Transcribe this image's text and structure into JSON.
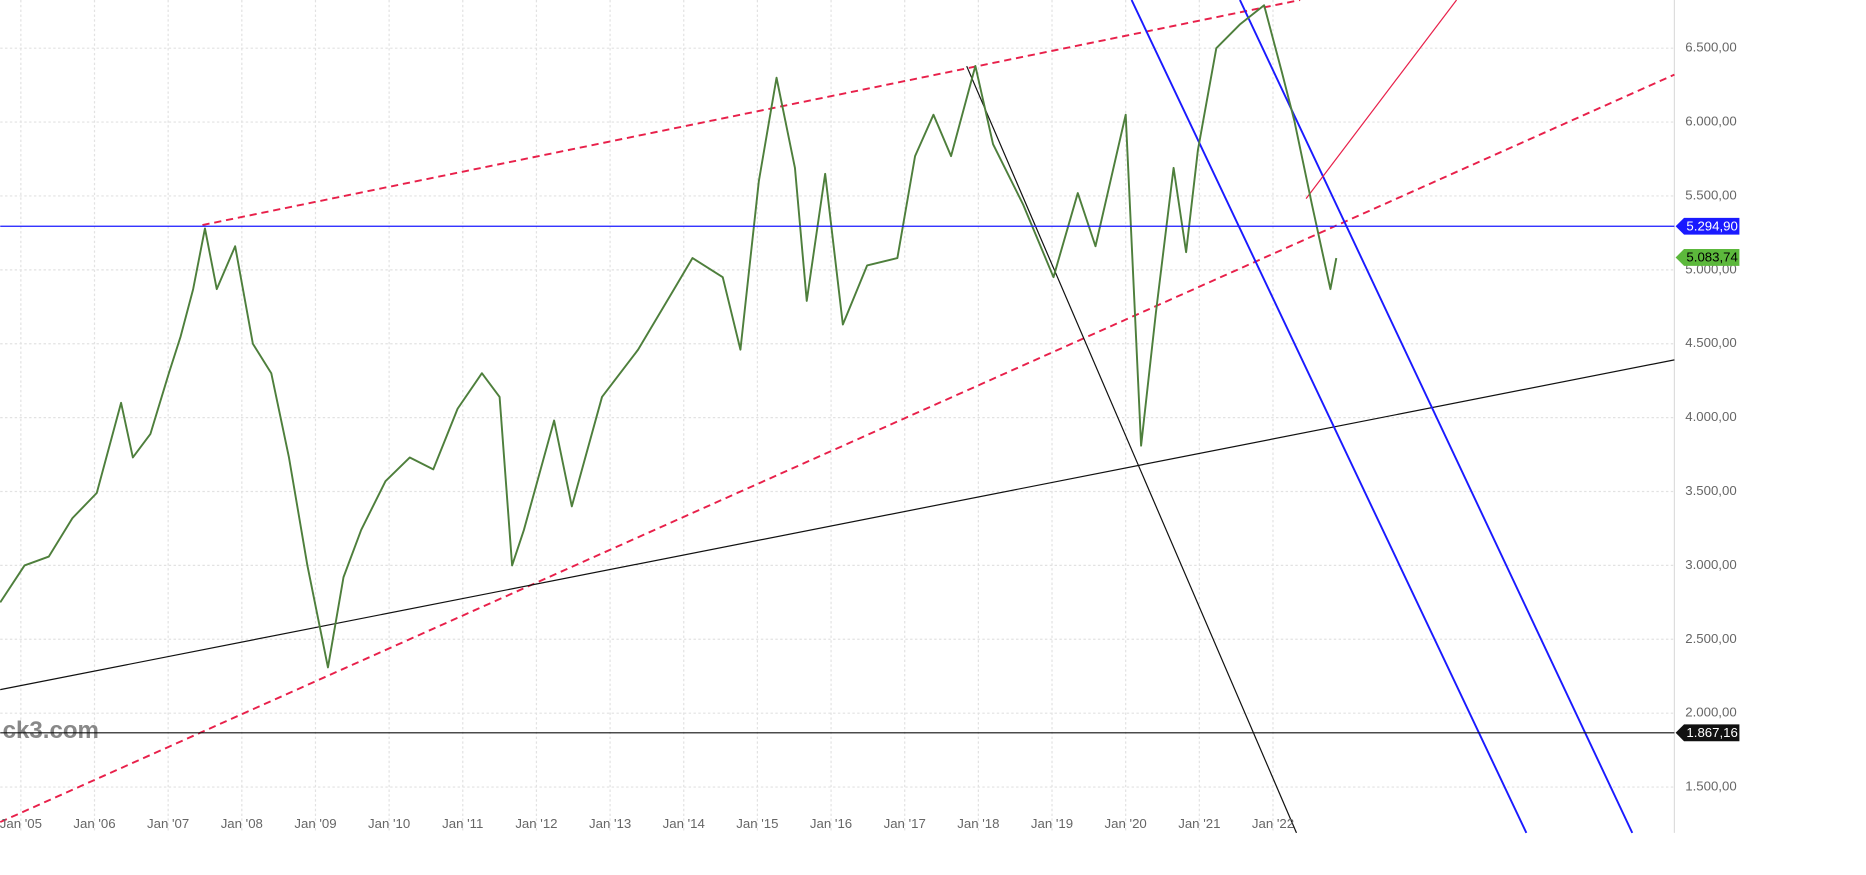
{
  "chart_data": {
    "type": "line",
    "color": "#4e7f3c",
    "grid": true,
    "x": [
      2004.72,
      2005.05,
      2005.38,
      2005.7,
      2006.03,
      2006.36,
      2006.52,
      2006.76,
      2007.01,
      2007.17,
      2007.34,
      2007.5,
      2007.66,
      2007.91,
      2008.15,
      2008.4,
      2008.64,
      2008.89,
      2009.17,
      2009.38,
      2009.62,
      2009.95,
      2010.28,
      2010.6,
      2010.93,
      2011.26,
      2011.5,
      2011.67,
      2011.83,
      2012.24,
      2012.48,
      2012.89,
      2013.38,
      2013.87,
      2014.12,
      2014.53,
      2014.77,
      2015.02,
      2015.26,
      2015.51,
      2015.67,
      2015.92,
      2016.16,
      2016.49,
      2016.9,
      2017.14,
      2017.39,
      2017.63,
      2017.96,
      2018.2,
      2018.61,
      2019.02,
      2019.35,
      2019.59,
      2020.0,
      2020.21,
      2020.41,
      2020.65,
      2020.82,
      2020.98,
      2021.23,
      2021.55,
      2021.88,
      2022.12,
      2022.29,
      2022.53,
      2022.78,
      2022.86
    ],
    "values": [
      2750,
      3000,
      3060,
      3320,
      3490,
      4100,
      3730,
      3890,
      4300,
      4550,
      4870,
      5280,
      4870,
      5160,
      4500,
      4300,
      3730,
      3000,
      2310,
      2920,
      3240,
      3570,
      3730,
      3650,
      4060,
      4300,
      4140,
      3000,
      3240,
      3980,
      3400,
      4140,
      4460,
      4870,
      5080,
      4950,
      4460,
      5600,
      6300,
      5690,
      4790,
      5650,
      4630,
      5030,
      5080,
      5770,
      6050,
      5770,
      6380,
      5850,
      5440,
      4950,
      5520,
      5160,
      6050,
      3810,
      4710,
      5690,
      5120,
      5810,
      6500,
      6660,
      6790,
      6340,
      6010,
      5440,
      4870,
      5080
    ],
    "xlim": [
      2004.72,
      2027.45
    ],
    "ylim": [
      1190,
      6826
    ],
    "xticks": [
      {
        "value": 2005,
        "label": "Jan '05"
      },
      {
        "value": 2006,
        "label": "Jan '06"
      },
      {
        "value": 2007,
        "label": "Jan '07"
      },
      {
        "value": 2008,
        "label": "Jan '08"
      },
      {
        "value": 2009,
        "label": "Jan '09"
      },
      {
        "value": 2010,
        "label": "Jan '10"
      },
      {
        "value": 2011,
        "label": "Jan '11"
      },
      {
        "value": 2012,
        "label": "Jan '12"
      },
      {
        "value": 2013,
        "label": "Jan '13"
      },
      {
        "value": 2014,
        "label": "Jan '14"
      },
      {
        "value": 2015,
        "label": "Jan '15"
      },
      {
        "value": 2016,
        "label": "Jan '16"
      },
      {
        "value": 2017,
        "label": "Jan '17"
      },
      {
        "value": 2018,
        "label": "Jan '18"
      },
      {
        "value": 2019,
        "label": "Jan '19"
      },
      {
        "value": 2020,
        "label": "Jan '20"
      },
      {
        "value": 2021,
        "label": "Jan '21"
      },
      {
        "value": 2022,
        "label": "Jan '22"
      }
    ],
    "yticks": [
      {
        "value": 1500,
        "label": "1.500,00"
      },
      {
        "value": 2000,
        "label": "2.000,00"
      },
      {
        "value": 2500,
        "label": "2.500,00"
      },
      {
        "value": 3000,
        "label": "3.000,00"
      },
      {
        "value": 3500,
        "label": "3.500,00"
      },
      {
        "value": 4000,
        "label": "4.000,00"
      },
      {
        "value": 4500,
        "label": "4.500,00"
      },
      {
        "value": 5000,
        "label": "5.000,00"
      },
      {
        "value": 5500,
        "label": "5.500,00"
      },
      {
        "value": 6000,
        "label": "6.000,00"
      },
      {
        "value": 6500,
        "label": "6.500,00"
      }
    ],
    "price_lines": [
      {
        "value": 5294.9,
        "value_label": "5.294,90",
        "color": "#1a1aff",
        "line": true
      },
      {
        "value": 5083.74,
        "value_label": "5.083,74",
        "color": "#5cb83c",
        "line": false
      },
      {
        "value": 1867.16,
        "value_label": "1.867,16",
        "color": "#111111",
        "line": true
      }
    ],
    "watermark": "ck3.com"
  }
}
